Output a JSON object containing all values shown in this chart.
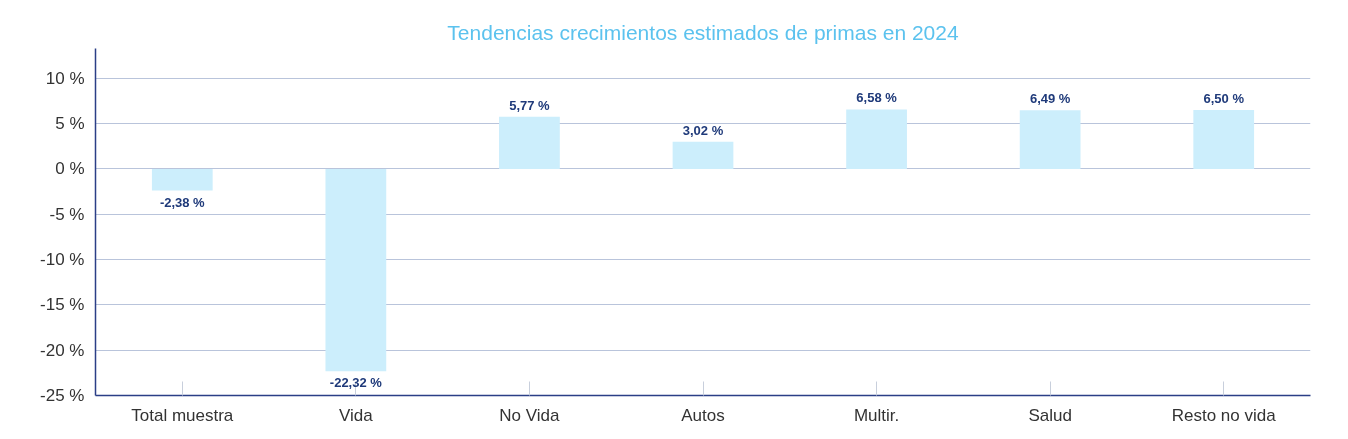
{
  "chart_data": {
    "type": "bar",
    "title": "Tendencias crecimientos estimados de primas en 2024",
    "categories": [
      "Total muestra",
      "Vida",
      "No Vida",
      "Autos",
      "Multir.",
      "Salud",
      "Resto no vida"
    ],
    "values": [
      -2.38,
      -22.32,
      5.77,
      3.02,
      6.58,
      6.49,
      6.5
    ],
    "value_labels": [
      "-2,38 %",
      "-22,32 %",
      "5,77 %",
      "3,02 %",
      "6,58 %",
      "6,49 %",
      "6,50 %"
    ],
    "color": "#cceefc",
    "ylim": [
      -25,
      13.3
    ],
    "yticks": [
      {
        "value": 10,
        "label": "10 %"
      },
      {
        "value": 5,
        "label": "5 %"
      },
      {
        "value": 0,
        "label": "0 %"
      },
      {
        "value": -5,
        "label": "-5 %"
      },
      {
        "value": -10,
        "label": "-10 %"
      },
      {
        "value": -15,
        "label": "-15 %"
      },
      {
        "value": -20,
        "label": "-20 %"
      },
      {
        "value": -25,
        "label": "-25 %"
      }
    ],
    "grid": "y"
  }
}
